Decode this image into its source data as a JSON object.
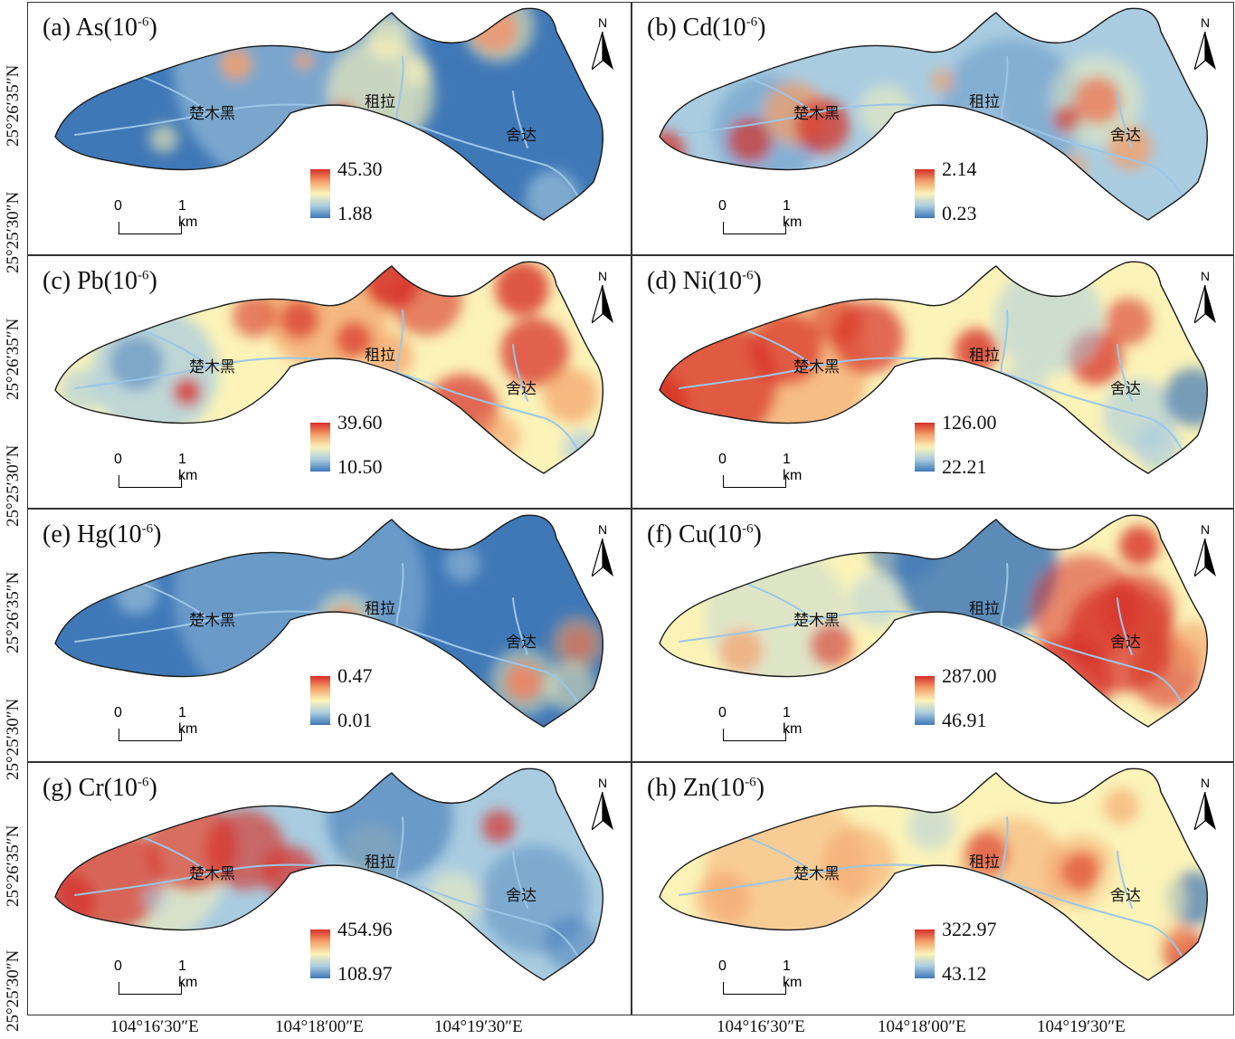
{
  "figure": {
    "panels": [
      {
        "id": "a",
        "label": "(a)",
        "element": "As",
        "unit": "(10",
        "exponent": "-6",
        "unit_close": ")",
        "max": "45.30",
        "min": "1.88",
        "scheme": "as"
      },
      {
        "id": "b",
        "label": "(b)",
        "element": "Cd",
        "unit": "(10",
        "exponent": "-6",
        "unit_close": ")",
        "max": "2.14",
        "min": "0.23",
        "scheme": "cd"
      },
      {
        "id": "c",
        "label": "(c)",
        "element": "Pb",
        "unit": "(10",
        "exponent": "-6",
        "unit_close": ")",
        "max": "39.60",
        "min": "10.50",
        "scheme": "pb"
      },
      {
        "id": "d",
        "label": "(d)",
        "element": "Ni",
        "unit": "(10",
        "exponent": "-6",
        "unit_close": ")",
        "max": "126.00",
        "min": "22.21",
        "scheme": "ni"
      },
      {
        "id": "e",
        "label": "(e)",
        "element": "Hg",
        "unit": "(10",
        "exponent": "-6",
        "unit_close": ")",
        "max": "0.47",
        "min": "0.01",
        "scheme": "hg"
      },
      {
        "id": "f",
        "label": "(f)",
        "element": "Cu",
        "unit": "(10",
        "exponent": "-6",
        "unit_close": ")",
        "max": "287.00",
        "min": "46.91",
        "scheme": "cu"
      },
      {
        "id": "g",
        "label": "(g)",
        "element": "Cr",
        "unit": "(10",
        "exponent": "-6",
        "unit_close": ")",
        "max": "454.96",
        "min": "108.97",
        "scheme": "cr"
      },
      {
        "id": "h",
        "label": "(h)",
        "element": "Zn",
        "unit": "(10",
        "exponent": "-6",
        "unit_close": ")",
        "max": "322.97",
        "min": "43.12",
        "scheme": "zn"
      }
    ],
    "places": {
      "west": "楚木黑",
      "middle": "租拉",
      "east": "舍达"
    },
    "north_label": "N",
    "scale": {
      "start": "0",
      "end": "1 km"
    },
    "lat_ticks": [
      "25°26′35″N",
      "25°25′30″N"
    ],
    "lon_ticks": [
      "104°16′30″E",
      "104°18′00″E",
      "104°19′30″E"
    ],
    "colors": {
      "high": "#d73027",
      "mid_high": "#f4a06a",
      "mid": "#fbf3b8",
      "mid_low": "#a9cce0",
      "low": "#3f78b7"
    }
  }
}
